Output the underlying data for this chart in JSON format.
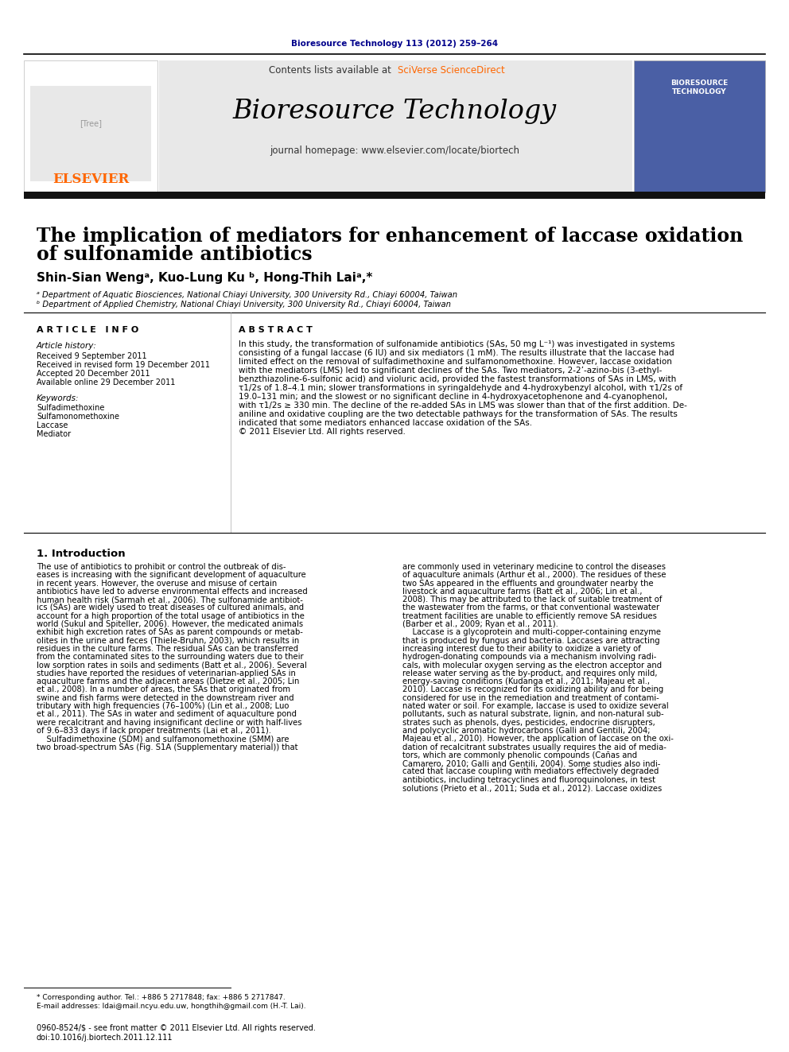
{
  "page_bg": "#ffffff",
  "header_citation": "Bioresource Technology 113 (2012) 259–264",
  "header_citation_color": "#00008B",
  "journal_name": "Bioresource Technology",
  "contents_line": "Contents lists available at ",
  "sciverse_text": "SciVerse ScienceDirect",
  "sciverse_color": "#FF6600",
  "homepage_line": "journal homepage: www.elsevier.com/locate/biortech",
  "elsevier_color": "#FF6600",
  "header_bg": "#E8E8E8",
  "divider_color": "#000000",
  "article_title_line1": "The implication of mediators for enhancement of laccase oxidation",
  "article_title_line2": "of sulfonamide antibiotics",
  "authors": "Shin-Sian Wengᵃ, Kuo-Lung Ku ᵇ, Hong-Thih Laiᵃ,*",
  "affil_a": "ᵃ Department of Aquatic Biosciences, National Chiayi University, 300 University Rd., Chiayi 60004, Taiwan",
  "affil_b": "ᵇ Department of Applied Chemistry, National Chiayi University, 300 University Rd., Chiayi 60004, Taiwan",
  "article_info_header": "A R T I C L E   I N F O",
  "abstract_header": "A B S T R A C T",
  "article_history_label": "Article history:",
  "received1": "Received 9 September 2011",
  "received2": "Received in revised form 19 December 2011",
  "accepted": "Accepted 20 December 2011",
  "available": "Available online 29 December 2011",
  "keywords_label": "Keywords:",
  "kw1": "Sulfadimethoxine",
  "kw2": "Sulfadimethoxine",
  "kw3": "Sulfamonomethoxine",
  "kw4": "Laccase",
  "kw5": "Mediator",
  "abstract_text": "In this study, the transformation of sulfonamide antibiotics (SAs, 50 mg L⁻¹) was investigated in systems\nconsisting of a fungal laccase (6 IU) and six mediators (1 mM). The results illustrate that the laccase had\nlimited effect on the removal of sulfadimethoxine and sulfamonomethoxine. However, laccase oxidation\nwith the mediators (LMS) led to significant declines of the SAs. Two mediators, 2-2’-azino-bis (3-ethyl-\nbenzthiazoline-6-sulfonic acid) and violuric acid, provided the fastest transformations of SAs in LMS, with\nτ1/2s of 1.8–4.1 min; slower transformations in syringaldehyde and 4-hydroxybenzyl alcohol, with τ1/2s of\n19.0–131 min; and the slowest or no significant decline in 4-hydroxyacetophenone and 4-cyanophenol,\nwith τ1/2s ≥ 330 min. The decline of the re-added SAs in LMS was slower than that of the first addition. De-\naniline and oxidative coupling are the two detectable pathways for the transformation of SAs. The results\nindicated that some mediators enhanced laccase oxidation of the SAs.\n© 2011 Elsevier Ltd. All rights reserved.",
  "intro_header": "1. Introduction",
  "intro_col1": [
    "The use of antibiotics to prohibit or control the outbreak of dis-",
    "eases is increasing with the significant development of aquaculture",
    "in recent years. However, the overuse and misuse of certain",
    "antibiotics have led to adverse environmental effects and increased",
    "human health risk (Sarmah et al., 2006). The sulfonamide antibiot-",
    "ics (SAs) are widely used to treat diseases of cultured animals, and",
    "account for a high proportion of the total usage of antibiotics in the",
    "world (Sukul and Spiteller, 2006). However, the medicated animals",
    "exhibit high excretion rates of SAs as parent compounds or metab-",
    "olites in the urine and feces (Thiele-Bruhn, 2003), which results in",
    "residues in the culture farms. The residual SAs can be transferred",
    "from the contaminated sites to the surrounding waters due to their",
    "low sorption rates in soils and sediments (Batt et al., 2006). Several",
    "studies have reported the residues of veterinarian-applied SAs in",
    "aquaculture farms and the adjacent areas (Dietze et al., 2005; Lin",
    "et al., 2008). In a number of areas, the SAs that originated from",
    "swine and fish farms were detected in the downstream river and",
    "tributary with high frequencies (76–100%) (Lin et al., 2008; Luo",
    "et al., 2011). The SAs in water and sediment of aquaculture pond",
    "were recalcitrant and having insignificant decline or with half-lives",
    "of 9.6–833 days if lack proper treatments (Lai et al., 2011).",
    "    Sulfadimethoxine (SDM) and sulfamonomethoxine (SMM) are",
    "two broad-spectrum SAs (Fig. S1A (Supplementary material)) that"
  ],
  "intro_col2": [
    "are commonly used in veterinary medicine to control the diseases",
    "of aquaculture animals (Arthur et al., 2000). The residues of these",
    "two SAs appeared in the effluents and groundwater nearby the",
    "livestock and aquaculture farms (Batt et al., 2006; Lin et al.,",
    "2008). This may be attributed to the lack of suitable treatment of",
    "the wastewater from the farms, or that conventional wastewater",
    "treatment facilities are unable to efficiently remove SA residues",
    "(Barber et al., 2009; Ryan et al., 2011).",
    "    Laccase is a glycoprotein and multi-copper-containing enzyme",
    "that is produced by fungus and bacteria. Laccases are attracting",
    "increasing interest due to their ability to oxidize a variety of",
    "hydrogen-donating compounds via a mechanism involving radi-",
    "cals, with molecular oxygen serving as the electron acceptor and",
    "release water serving as the by-product, and requires only mild,",
    "energy-saving conditions (Kudanga et al., 2011; Majeau et al.,",
    "2010). Laccase is recognized for its oxidizing ability and for being",
    "considered for use in the remediation and treatment of contami-",
    "nated water or soil. For example, laccase is used to oxidize several",
    "pollutants, such as natural substrate, lignin, and non-natural sub-",
    "strates such as phenols, dyes, pesticides, endocrine disrupters,",
    "and polycyclic aromatic hydrocarbons (Galli and Gentili, 2004;",
    "Majeau et al., 2010). However, the application of laccase on the oxi-",
    "dation of recalcitrant substrates usually requires the aid of media-",
    "tors, which are commonly phenolic compounds (Cañas and",
    "Camarero, 2010; Galli and Gentili, 2004). Some studies also indi-",
    "cated that laccase coupling with mediators effectively degraded",
    "antibiotics, including tetracyclines and fluoroquinolones, in test",
    "solutions (Prieto et al., 2011; Suda et al., 2012). Laccase oxidizes"
  ],
  "footnote1": "* Corresponding author. Tel.: +886 5 2717848; fax: +886 5 2717847.",
  "footnote2": "E-mail addresses: ldai@mail.ncyu.edu.uw, hongthih@gmail.com (H.-T. Lai).",
  "footer1": "0960-8524/$ - see front matter © 2011 Elsevier Ltd. All rights reserved.",
  "footer2": "doi:10.1016/j.biortech.2011.12.111"
}
